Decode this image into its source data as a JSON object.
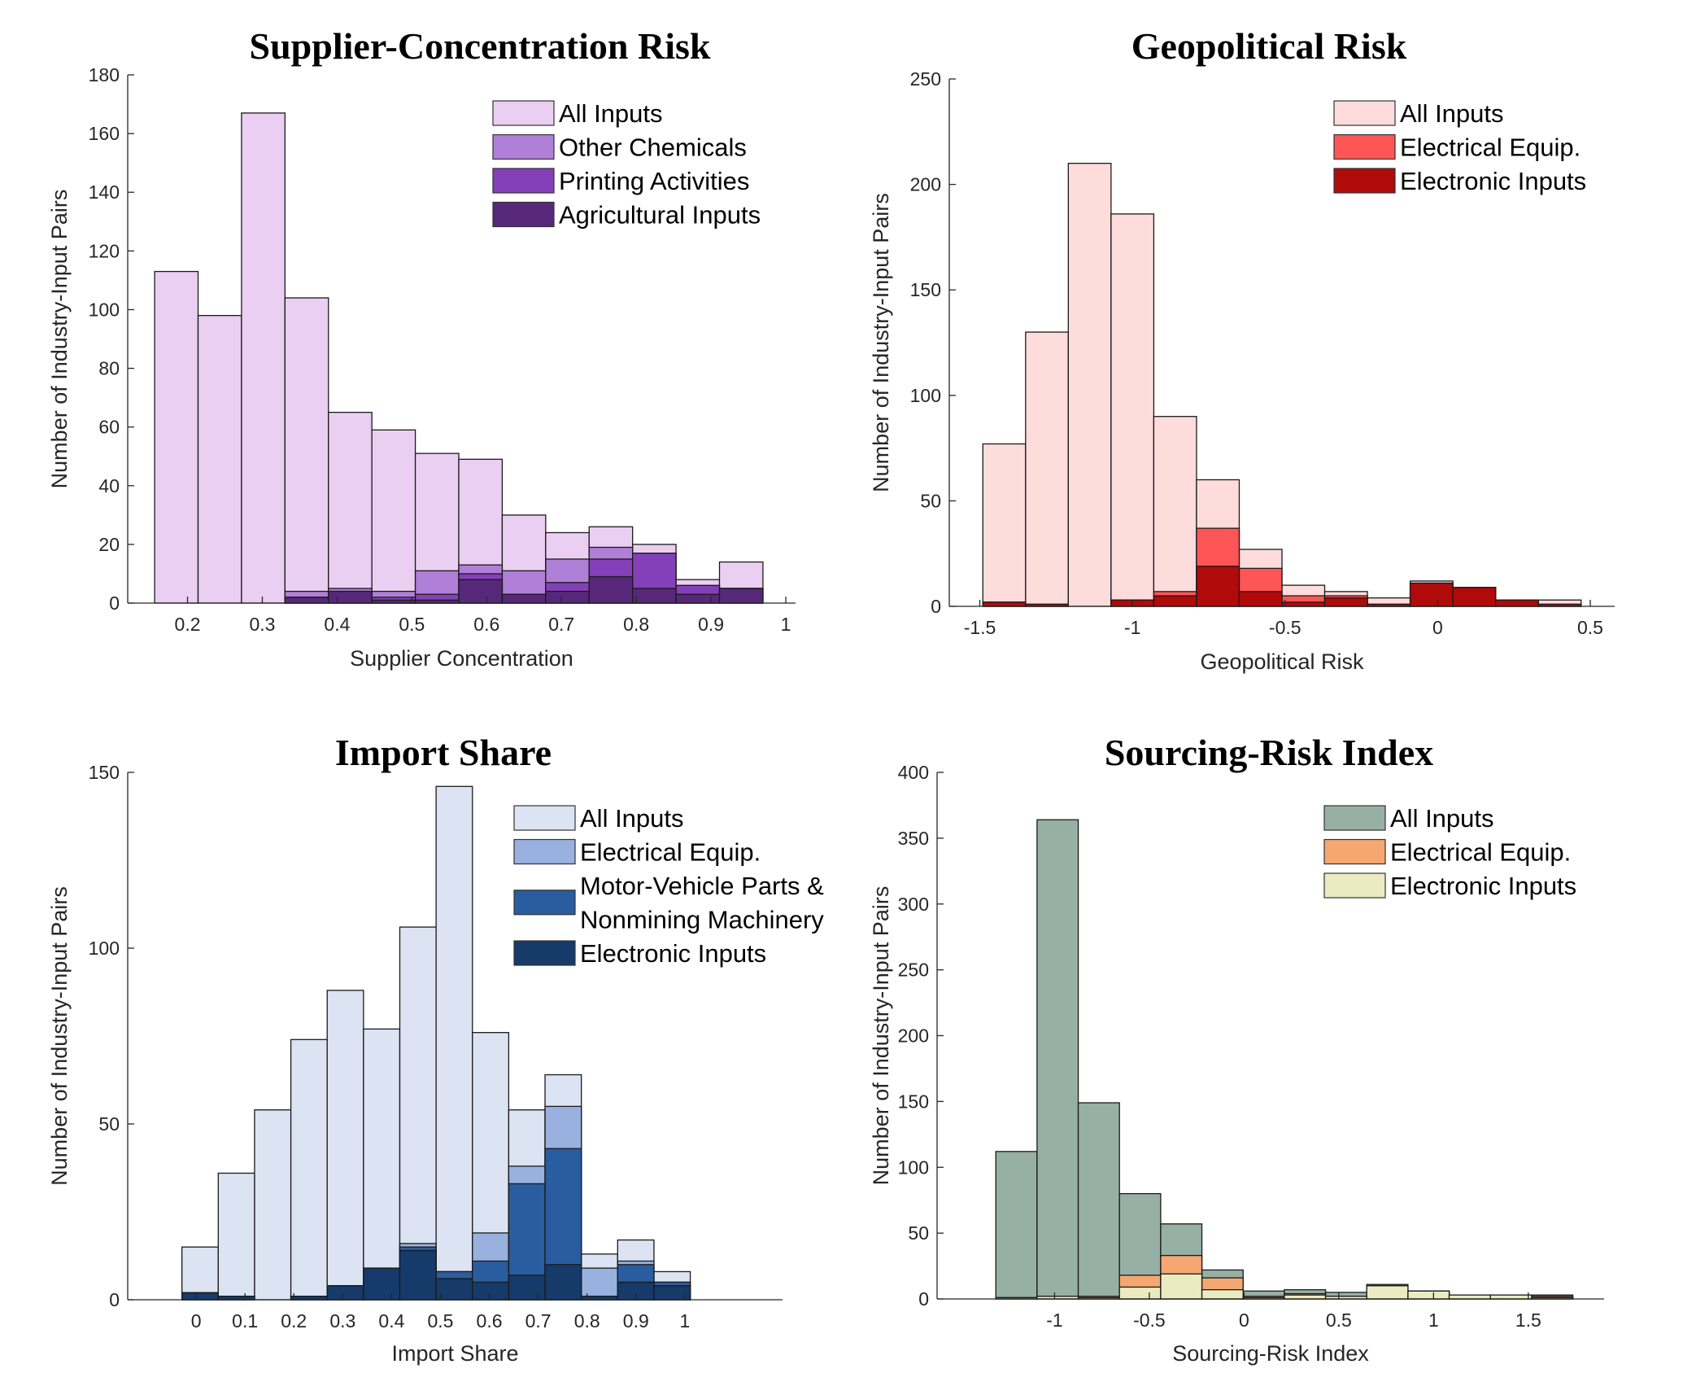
{
  "chart_data": [
    {
      "type": "bar",
      "subtype": "overlaid-histogram",
      "title": "Supplier-Concentration Risk",
      "xlabel": "Supplier Concentration",
      "ylabel": "Number of Industry-Input Pairs",
      "xlim": [
        0.12,
        1.013
      ],
      "ylim": [
        0,
        180
      ],
      "xticks": [
        0.2,
        0.3,
        0.4,
        0.5,
        0.6,
        0.7,
        0.8,
        0.9,
        1
      ],
      "xtick_labels": [
        "0.2",
        "0.3",
        "0.4",
        "0.5",
        "0.6",
        "0.7",
        "0.8",
        "0.9",
        "1"
      ],
      "yticks": [
        0,
        20,
        40,
        60,
        80,
        100,
        120,
        140,
        160,
        180
      ],
      "ytick_labels": [
        "0",
        "20",
        "40",
        "60",
        "80",
        "100",
        "120",
        "140",
        "160",
        "180"
      ],
      "bin_start": 0.156,
      "bin_width": 0.0581,
      "legend_position": "top-right",
      "grid": false,
      "series": [
        {
          "name": "All Inputs",
          "color": "#ebcff2",
          "values": [
            113,
            98,
            167,
            104,
            65,
            59,
            51,
            49,
            30,
            24,
            26,
            20,
            8,
            14
          ]
        },
        {
          "name": "Other Chemicals",
          "color": "#b07fd8",
          "values": [
            0,
            0,
            0,
            4,
            5,
            4,
            11,
            13,
            11,
            15,
            19,
            17,
            6,
            5
          ]
        },
        {
          "name": "Printing Activities",
          "color": "#8440b8",
          "values": [
            0,
            0,
            0,
            2,
            4,
            2,
            3,
            10,
            3,
            7,
            15,
            17,
            6,
            5
          ]
        },
        {
          "name": "Agricultural Inputs",
          "color": "#57287a",
          "values": [
            0,
            0,
            0,
            2,
            4,
            1,
            1,
            8,
            3,
            4,
            9,
            5,
            3,
            5
          ]
        }
      ]
    },
    {
      "type": "bar",
      "subtype": "overlaid-histogram",
      "title": "Geopolitical Risk",
      "xlabel": "Geopolitical Risk",
      "ylabel": "Number of Industry-Input Pairs",
      "xlim": [
        -1.6,
        0.58
      ],
      "ylim": [
        0,
        250
      ],
      "xticks": [
        -1.5,
        -1,
        -0.5,
        0,
        0.5
      ],
      "xtick_labels": [
        "-1.5",
        "-1",
        "-0.5",
        "0",
        "0.5"
      ],
      "yticks": [
        0,
        50,
        100,
        150,
        200,
        250
      ],
      "ytick_labels": [
        "0",
        "50",
        "100",
        "150",
        "200",
        "250"
      ],
      "bin_start": -1.49,
      "bin_width": 0.14,
      "legend_position": "top-right",
      "grid": false,
      "series": [
        {
          "name": "All Inputs",
          "color": "#fedcdc",
          "values": [
            77,
            130,
            210,
            186,
            90,
            60,
            27,
            10,
            7,
            4,
            12,
            9,
            3,
            3
          ]
        },
        {
          "name": "Electrical Equip.",
          "color": "#fe5656",
          "values": [
            2,
            1,
            0,
            3,
            7,
            37,
            18,
            5,
            5,
            1,
            11,
            9,
            3,
            1
          ]
        },
        {
          "name": "Electronic Inputs",
          "color": "#b00a0a",
          "values": [
            2,
            1,
            0,
            3,
            5,
            19,
            7,
            2,
            4,
            1,
            11,
            9,
            3,
            1
          ]
        }
      ]
    },
    {
      "type": "bar",
      "subtype": "overlaid-histogram",
      "title": "Import Share",
      "xlabel": "Import Share",
      "ylabel": "Number of Industry-Input Pairs",
      "xlim": [
        -0.14,
        1.2
      ],
      "ylim": [
        0,
        150
      ],
      "xticks": [
        0,
        0.1,
        0.2,
        0.3,
        0.4,
        0.5,
        0.6,
        0.7,
        0.8,
        0.9,
        1
      ],
      "xtick_labels": [
        "0",
        "0.1",
        "0.2",
        "0.3",
        "0.4",
        "0.5",
        "0.6",
        "0.7",
        "0.8",
        "0.9",
        "1"
      ],
      "yticks": [
        0,
        50,
        100,
        150
      ],
      "ytick_labels": [
        "0",
        "50",
        "100",
        "150"
      ],
      "bin_start": -0.029,
      "bin_width": 0.0743,
      "legend_position": "top-right",
      "grid": false,
      "series": [
        {
          "name": "All Inputs",
          "color": "#dce3f3",
          "values": [
            15,
            36,
            54,
            74,
            88,
            77,
            106,
            146,
            76,
            54,
            64,
            13,
            17,
            8
          ]
        },
        {
          "name": "Electrical Equip.",
          "color": "#98b1df",
          "values": [
            2,
            1,
            0,
            1,
            4,
            9,
            16,
            8,
            19,
            38,
            55,
            9,
            11,
            5
          ]
        },
        {
          "name": "Motor-Vehicle Parts & Nonmining Machinery",
          "legend_lines": [
            "Motor-Vehicle Parts &",
            " Nonmining Machinery"
          ],
          "color": "#2a5d9f",
          "values": [
            2,
            1,
            0,
            1,
            4,
            9,
            15,
            8,
            11,
            33,
            43,
            1,
            10,
            5
          ]
        },
        {
          "name": "Electronic Inputs",
          "color": "#163a69",
          "values": [
            2,
            1,
            0,
            1,
            4,
            9,
            14,
            6,
            5,
            7,
            10,
            1,
            5,
            4
          ]
        }
      ]
    },
    {
      "type": "bar",
      "subtype": "overlaid-histogram",
      "title": "Sourcing-Risk Index",
      "xlabel": "Sourcing-Risk Index",
      "ylabel": "Number of Industry-Input Pairs",
      "xlim": [
        -1.62,
        1.9
      ],
      "ylim": [
        0,
        400
      ],
      "xticks": [
        -1,
        -0.5,
        0,
        0.5,
        1,
        1.5
      ],
      "xtick_labels": [
        "-1",
        "-0.5",
        "0",
        "0.5",
        "1",
        "1.5"
      ],
      "yticks": [
        0,
        50,
        100,
        150,
        200,
        250,
        300,
        350,
        400
      ],
      "ytick_labels": [
        "0",
        "50",
        "100",
        "150",
        "200",
        "250",
        "300",
        "350",
        "400"
      ],
      "bin_start": -1.31,
      "bin_width": 0.2175,
      "legend_position": "top-right",
      "grid": false,
      "series": [
        {
          "name": "All Inputs",
          "color": "#97b0a6",
          "values": [
            112,
            364,
            149,
            80,
            57,
            22,
            6,
            7,
            5,
            11,
            6,
            3,
            3,
            3
          ]
        },
        {
          "name": "Electrical Equip.",
          "color": "#f5a772",
          "values": [
            1,
            2,
            2,
            18,
            33,
            16,
            2,
            4,
            2,
            10,
            6,
            3,
            3,
            2
          ]
        },
        {
          "name": "Electronic Inputs",
          "color": "#ebebc1",
          "values": [
            1,
            2,
            1,
            9,
            19,
            7,
            1,
            3,
            2,
            10,
            6,
            3,
            3,
            1
          ]
        }
      ]
    }
  ]
}
